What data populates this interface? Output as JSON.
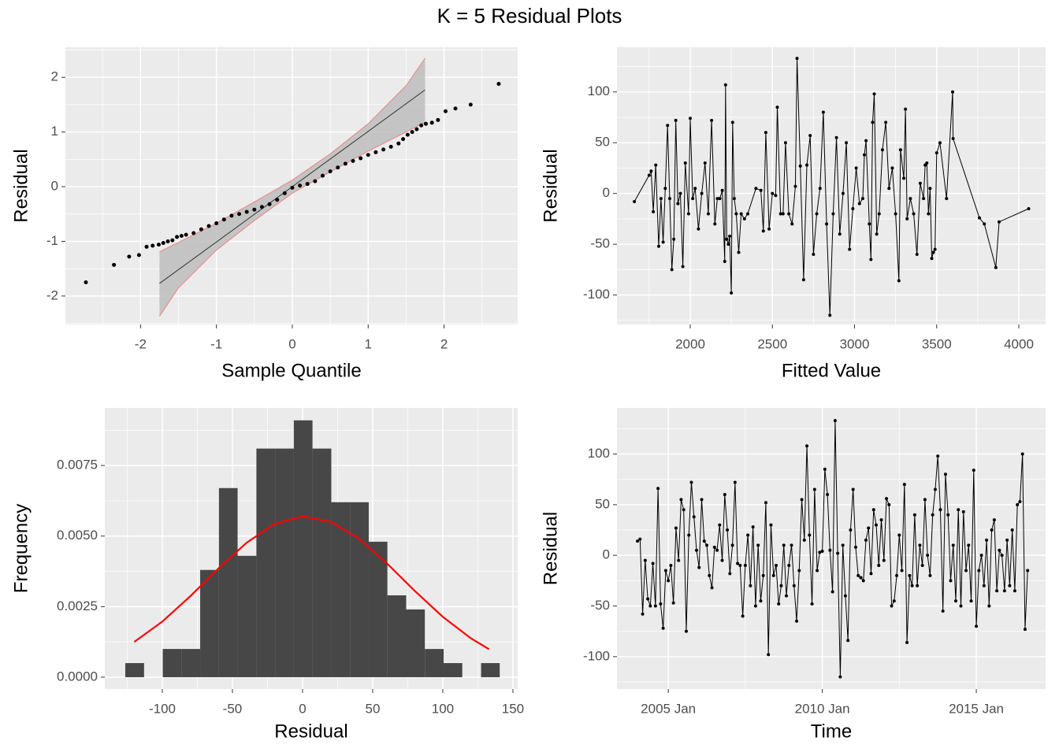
{
  "title": "K = 5 Residual Plots",
  "chart_data": [
    {
      "type": "scatter",
      "x_label": "Sample Quantile",
      "y_label": "Residual",
      "color": "#000000",
      "x": [
        -2.72,
        -2.35,
        -2.15,
        -2.02,
        -1.92,
        -1.84,
        -1.76,
        -1.7,
        -1.64,
        -1.58,
        -1.52,
        -1.46,
        -1.4,
        -1.3,
        -1.2,
        -1.1,
        -1.0,
        -0.9,
        -0.8,
        -0.7,
        -0.6,
        -0.5,
        -0.4,
        -0.3,
        -0.2,
        -0.1,
        0,
        0.1,
        0.2,
        0.3,
        0.4,
        0.5,
        0.6,
        0.7,
        0.8,
        0.9,
        1.0,
        1.1,
        1.2,
        1.3,
        1.4,
        1.46,
        1.52,
        1.58,
        1.64,
        1.7,
        1.76,
        1.84,
        1.92,
        2.02,
        2.15,
        2.35,
        2.72
      ],
      "y": [
        -1.75,
        -1.43,
        -1.28,
        -1.25,
        -1.1,
        -1.08,
        -1.06,
        -1.03,
        -1.0,
        -0.98,
        -0.92,
        -0.9,
        -0.88,
        -0.85,
        -0.78,
        -0.72,
        -0.67,
        -0.6,
        -0.53,
        -0.5,
        -0.46,
        -0.42,
        -0.37,
        -0.32,
        -0.24,
        -0.12,
        -0.02,
        0.02,
        0.05,
        0.1,
        0.2,
        0.28,
        0.35,
        0.42,
        0.47,
        0.52,
        0.58,
        0.63,
        0.68,
        0.73,
        0.79,
        0.87,
        0.95,
        1.0,
        1.05,
        1.12,
        1.15,
        1.17,
        1.22,
        1.38,
        1.43,
        1.5,
        1.88
      ],
      "band": {
        "color": "#bdbdbd",
        "edge_color": "#f08080",
        "x": [
          -1.75,
          -1.5,
          -1,
          -0.5,
          0,
          0.5,
          1,
          1.5,
          1.75
        ],
        "upper": [
          -1.19,
          -1.02,
          -0.67,
          -0.28,
          0.12,
          0.6,
          1.15,
          1.85,
          2.35
        ],
        "lower": [
          -2.37,
          -1.85,
          -1.16,
          -0.62,
          -0.12,
          0.27,
          0.65,
          1.0,
          1.18
        ]
      },
      "reference_line": {
        "color": "#333333",
        "x": [
          -1.75,
          1.75
        ],
        "y": [
          -1.77,
          1.77
        ]
      },
      "xlim": [
        -2.99,
        2.97
      ],
      "ylim": [
        -2.52,
        2.55
      ],
      "xticks": [
        -2,
        -1,
        0,
        1,
        2
      ],
      "yticks": [
        -2,
        -1,
        0,
        1,
        2
      ],
      "grid": true
    },
    {
      "type": "line",
      "x_label": "Fitted Value",
      "y_label": "Residual",
      "color": "#000000",
      "markers": true,
      "x": [
        1660,
        1750,
        1762,
        1775,
        1790,
        1808,
        1822,
        1835,
        1848,
        1862,
        1875,
        1888,
        1900,
        1912,
        1925,
        1940,
        1955,
        1970,
        1990,
        2000,
        2015,
        2030,
        2050,
        2070,
        2090,
        2110,
        2130,
        2150,
        2165,
        2180,
        2195,
        2210,
        2215,
        2222,
        2232,
        2240,
        2250,
        2258,
        2268,
        2280,
        2295,
        2310,
        2330,
        2350,
        2400,
        2430,
        2445,
        2460,
        2480,
        2500,
        2520,
        2530,
        2550,
        2565,
        2580,
        2600,
        2620,
        2640,
        2650,
        2670,
        2690,
        2710,
        2730,
        2750,
        2770,
        2790,
        2810,
        2830,
        2850,
        2870,
        2890,
        2910,
        2930,
        2950,
        2970,
        2990,
        3010,
        3030,
        3050,
        3060,
        3070,
        3090,
        3100,
        3110,
        3120,
        3135,
        3150,
        3170,
        3190,
        3210,
        3230,
        3250,
        3270,
        3280,
        3300,
        3310,
        3320,
        3340,
        3360,
        3380,
        3400,
        3420,
        3430,
        3440,
        3450,
        3460,
        3470,
        3480,
        3490,
        3500,
        3520,
        3560,
        3597,
        3600,
        3760,
        3790,
        3860,
        3880,
        4060
      ],
      "values": [
        -8,
        18,
        22,
        -18,
        28,
        -52,
        -5,
        -48,
        5,
        67,
        -5,
        -75,
        -45,
        72,
        -10,
        0,
        -72,
        30,
        -20,
        74,
        -5,
        5,
        -35,
        0,
        30,
        -20,
        72,
        -30,
        -5,
        -5,
        3,
        -67,
        107,
        -45,
        -50,
        -42,
        -98,
        70,
        -5,
        -20,
        -58,
        -20,
        -25,
        -20,
        5,
        3,
        -37,
        60,
        -35,
        0,
        -2,
        85,
        -20,
        -20,
        50,
        -20,
        -30,
        7,
        133,
        27,
        -85,
        28,
        57,
        -60,
        -20,
        5,
        80,
        -30,
        -120,
        -20,
        55,
        -40,
        0,
        50,
        -55,
        -15,
        25,
        -10,
        -5,
        38,
        52,
        -30,
        -65,
        70,
        98,
        -40,
        -20,
        43,
        70,
        5,
        25,
        -20,
        -86,
        43,
        15,
        83,
        -25,
        -5,
        -20,
        -60,
        10,
        -5,
        28,
        30,
        -20,
        5,
        -64,
        -58,
        -55,
        40,
        50,
        -5,
        100,
        54,
        -24,
        -30,
        -73,
        -28,
        -15
      ],
      "xlim": [
        1554,
        4163
      ],
      "ylim": [
        -129,
        144
      ],
      "xticks": [
        2000,
        2500,
        3000,
        3500,
        4000
      ],
      "yticks": [
        -100,
        -50,
        0,
        50,
        100
      ],
      "grid": true
    },
    {
      "type": "histogram",
      "x_label": "Residual",
      "y_label": "Frequency",
      "color": "#474747",
      "bins": [
        -126.4,
        -113.0,
        -99.7,
        -86.3,
        -73.0,
        -59.6,
        -46.3,
        -32.9,
        -19.6,
        -6.2,
        7.1,
        20.5,
        33.8,
        47.2,
        60.5,
        73.9,
        87.2,
        100.6,
        113.9,
        127.3,
        140.6
      ],
      "values": [
        0.0005,
        0,
        0.001,
        0.001,
        0.0038,
        0.0067,
        0.0043,
        0.0081,
        0.0081,
        0.0091,
        0.0081,
        0.0062,
        0.0062,
        0.0048,
        0.0029,
        0.0024,
        0.001,
        0.0005,
        0,
        0.0005
      ],
      "curve": {
        "color": "#ff0000",
        "x": [
          -120,
          -100,
          -80,
          -60,
          -40,
          -20,
          0,
          20,
          40,
          60,
          80,
          100,
          120,
          133
        ],
        "y": [
          0.00125,
          0.00197,
          0.00287,
          0.00385,
          0.00476,
          0.00543,
          0.0057,
          0.00551,
          0.00492,
          0.00404,
          0.00306,
          0.00214,
          0.00138,
          0.00099
        ]
      },
      "xlim": [
        -141,
        153.4
      ],
      "ylim": [
        -0.00042,
        0.00954
      ],
      "xticks": [
        -100,
        -50,
        0,
        50,
        100,
        150
      ],
      "yticks": [
        {
          "value": 0,
          "label": "0.0000"
        },
        0.0025,
        {
          "value": 0.005,
          "label": "0.0050"
        },
        0.0075
      ],
      "grid": true
    },
    {
      "type": "line",
      "x_label": "Time",
      "y_label": "Residual",
      "color": "#000000",
      "markers": true,
      "x": [
        "2004-01",
        "2004-02",
        "2004-03",
        "2004-04",
        "2004-05",
        "2004-06",
        "2004-07",
        "2004-08",
        "2004-09",
        "2004-10",
        "2004-11",
        "2004-12",
        "2005-01",
        "2005-02",
        "2005-03",
        "2005-04",
        "2005-05",
        "2005-06",
        "2005-07",
        "2005-08",
        "2005-09",
        "2005-10",
        "2005-11",
        "2005-12",
        "2006-01",
        "2006-02",
        "2006-03",
        "2006-04",
        "2006-05",
        "2006-06",
        "2006-07",
        "2006-08",
        "2006-09",
        "2006-10",
        "2006-11",
        "2006-12",
        "2007-01",
        "2007-02",
        "2007-03",
        "2007-04",
        "2007-05",
        "2007-06",
        "2007-07",
        "2007-08",
        "2007-09",
        "2007-10",
        "2007-11",
        "2007-12",
        "2008-01",
        "2008-02",
        "2008-03",
        "2008-04",
        "2008-05",
        "2008-06",
        "2008-07",
        "2008-08",
        "2008-09",
        "2008-10",
        "2008-11",
        "2008-12",
        "2009-01",
        "2009-02",
        "2009-03",
        "2009-04",
        "2009-05",
        "2009-06",
        "2009-07",
        "2009-08",
        "2009-09",
        "2009-10",
        "2009-11",
        "2009-12",
        "2010-01",
        "2010-02",
        "2010-03",
        "2010-04",
        "2010-05",
        "2010-06",
        "2010-07",
        "2010-08",
        "2010-09",
        "2010-10",
        "2010-11",
        "2010-12",
        "2011-01",
        "2011-02",
        "2011-03",
        "2011-04",
        "2011-05",
        "2011-06",
        "2011-07",
        "2011-08",
        "2011-09",
        "2011-10",
        "2011-11",
        "2011-12",
        "2012-01",
        "2012-02",
        "2012-03",
        "2012-04",
        "2012-05",
        "2012-06",
        "2012-07",
        "2012-08",
        "2012-09",
        "2012-10",
        "2012-11",
        "2012-12",
        "2013-01",
        "2013-02",
        "2013-03",
        "2013-04",
        "2013-05",
        "2013-06",
        "2013-07",
        "2013-08",
        "2013-09",
        "2013-10",
        "2013-11",
        "2013-12",
        "2014-01",
        "2014-02",
        "2014-03",
        "2014-04",
        "2014-05",
        "2014-06",
        "2014-07",
        "2014-08",
        "2014-09",
        "2014-10",
        "2014-11",
        "2014-12",
        "2015-01",
        "2015-02",
        "2015-03",
        "2015-04",
        "2015-05",
        "2015-06",
        "2015-07",
        "2015-08",
        "2015-09",
        "2015-10",
        "2015-11",
        "2015-12",
        "2016-01",
        "2016-02",
        "2016-03",
        "2016-04",
        "2016-05",
        "2016-06",
        "2016-07",
        "2016-08",
        "2016-09"
      ],
      "values": [
        14,
        16,
        -58,
        -5,
        -43,
        -50,
        -8,
        -50,
        66,
        -48,
        -72,
        -15,
        -25,
        -10,
        -47,
        27,
        -5,
        55,
        45,
        -75,
        20,
        72,
        38,
        5,
        -12,
        55,
        14,
        10,
        -20,
        -32,
        8,
        5,
        30,
        -5,
        60,
        25,
        -18,
        10,
        72,
        -8,
        -10,
        -60,
        -10,
        20,
        -30,
        28,
        -50,
        10,
        -45,
        -20,
        52,
        -98,
        30,
        -20,
        -10,
        -48,
        -30,
        10,
        -40,
        -10,
        10,
        -30,
        -65,
        -15,
        55,
        15,
        108,
        20,
        -48,
        65,
        -15,
        3,
        4,
        85,
        60,
        5,
        -36,
        133,
        2,
        -120,
        10,
        -40,
        -84,
        25,
        65,
        8,
        -20,
        -22,
        -25,
        15,
        27,
        -18,
        45,
        30,
        -10,
        35,
        -5,
        56,
        50,
        -50,
        -45,
        -20,
        20,
        -15,
        70,
        -86,
        -20,
        -30,
        40,
        -30,
        10,
        -10,
        55,
        0,
        -20,
        40,
        65,
        98,
        45,
        -55,
        80,
        40,
        -25,
        10,
        -45,
        45,
        -50,
        43,
        -15,
        10,
        -45,
        84,
        -70,
        -15,
        0,
        -30,
        15,
        -50,
        25,
        35,
        -35,
        5,
        0,
        -35,
        15,
        -30,
        25,
        -35,
        50,
        53,
        100,
        -73,
        -15
      ],
      "xlim": [
        "2003-05",
        "2017-04"
      ],
      "ylim": [
        -132,
        145.5
      ],
      "xticks": [
        {
          "value": "2005-01",
          "label": "2005 Jan"
        },
        {
          "value": "2010-01",
          "label": "2010 Jan"
        },
        {
          "value": "2015-01",
          "label": "2015 Jan"
        }
      ],
      "yticks": [
        -100,
        -50,
        0,
        50,
        100
      ],
      "grid": true
    }
  ]
}
